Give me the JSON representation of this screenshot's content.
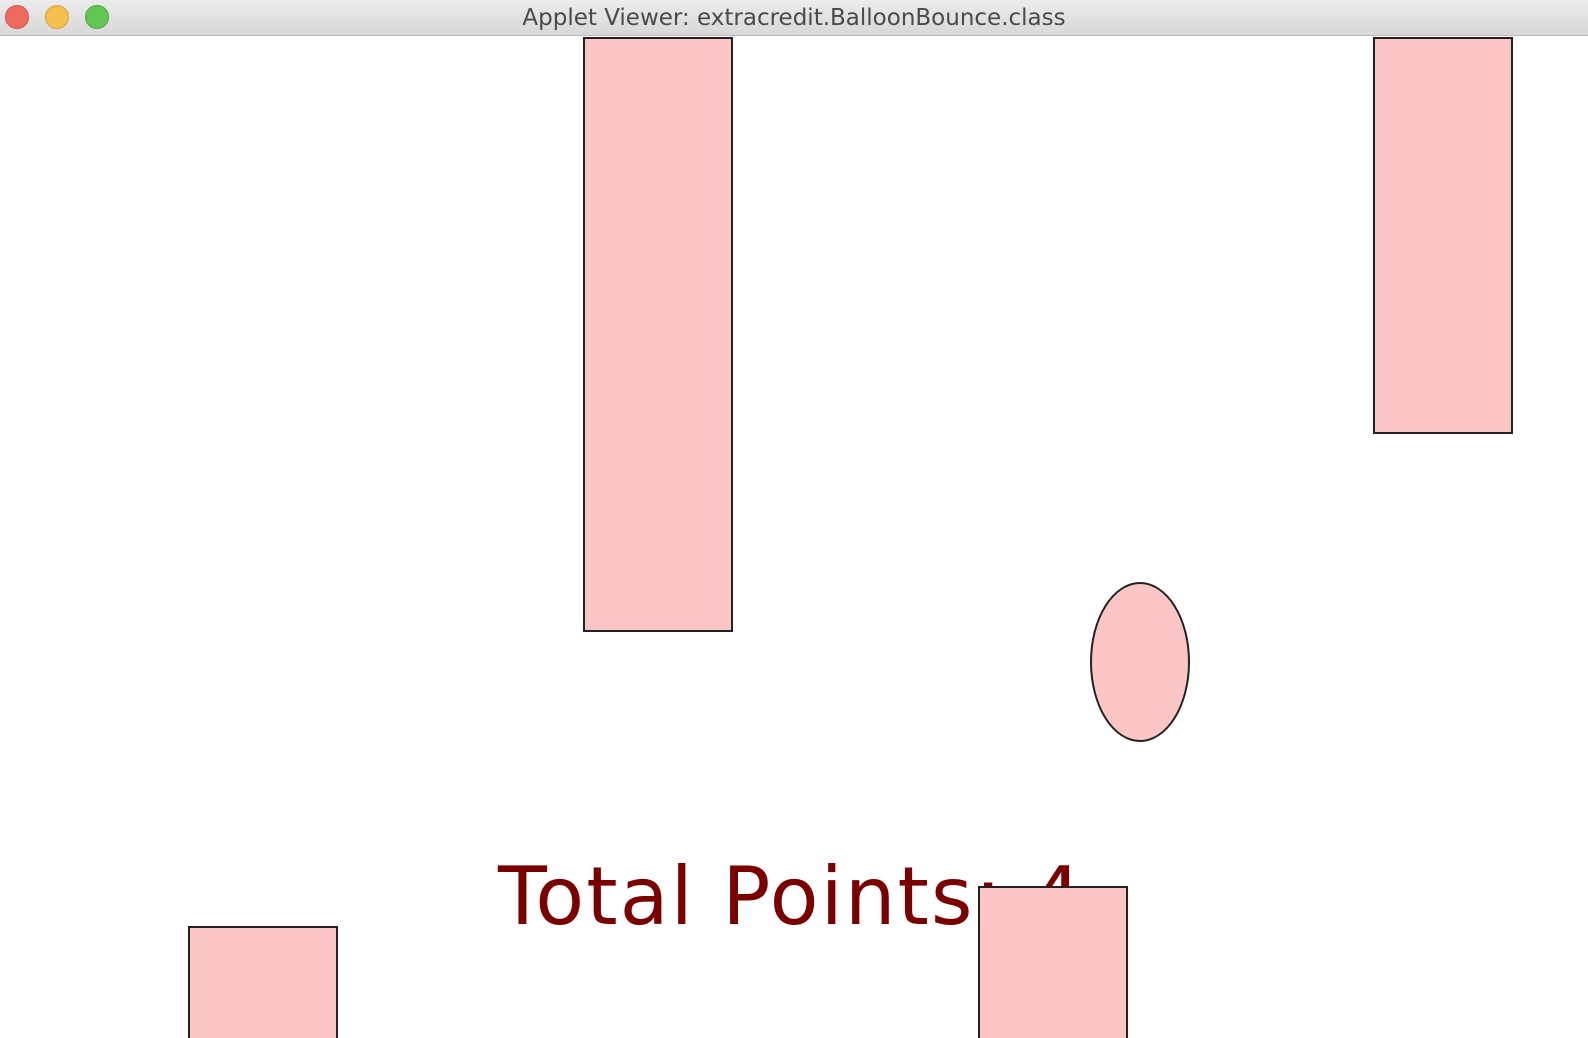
{
  "window": {
    "title": "Applet Viewer: extracredit.BalloonBounce.class"
  },
  "game": {
    "score_label": "Total Points:",
    "score_value": "4",
    "colors": {
      "obstacle_fill": "#fcc6c6",
      "balloon_fill": "#fcc6c6",
      "outline": "#222222",
      "score_text": "#7a0000",
      "background": "#ffffff"
    }
  }
}
